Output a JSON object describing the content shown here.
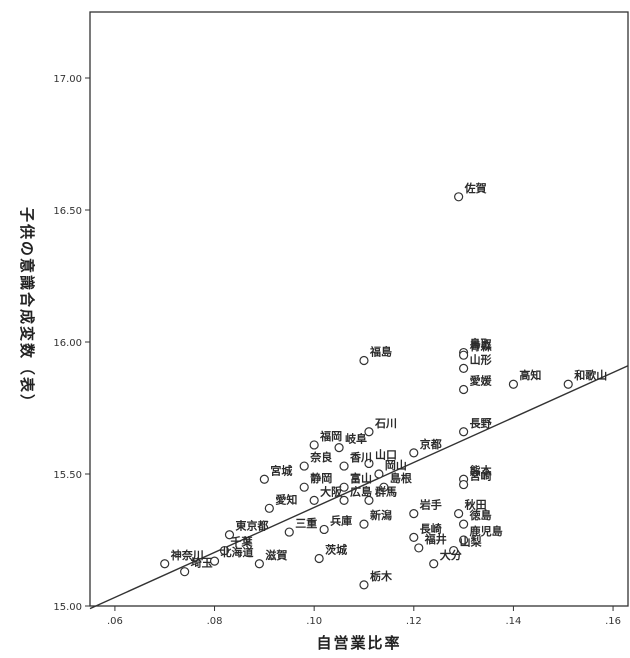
{
  "chart_data": {
    "type": "scatter",
    "title": "",
    "xlabel": "自営業比率",
    "ylabel": "子供の意識合成変数（表）",
    "xlim": [
      0.055,
      0.163
    ],
    "ylim": [
      15.0,
      17.25
    ],
    "xticks": [
      ".06",
      ".08",
      ".10",
      ".12",
      ".14",
      ".16"
    ],
    "xtick_values": [
      0.06,
      0.08,
      0.1,
      0.12,
      0.14,
      0.16
    ],
    "yticks": [
      "15.00",
      "15.50",
      "16.00",
      "16.50",
      "17.00"
    ],
    "ytick_values": [
      15.0,
      15.5,
      16.0,
      16.5,
      17.0
    ],
    "grid": false,
    "fit_line": {
      "x": [
        0.055,
        0.163
      ],
      "y": [
        14.99,
        15.91
      ]
    },
    "points": [
      {
        "name": "佐賀",
        "x": 0.129,
        "y": 16.55
      },
      {
        "name": "福島",
        "x": 0.11,
        "y": 15.93
      },
      {
        "name": "鳥取",
        "x": 0.13,
        "y": 15.96
      },
      {
        "name": "青森",
        "x": 0.13,
        "y": 15.95
      },
      {
        "name": "山形",
        "x": 0.13,
        "y": 15.9
      },
      {
        "name": "愛媛",
        "x": 0.13,
        "y": 15.82
      },
      {
        "name": "高知",
        "x": 0.14,
        "y": 15.84
      },
      {
        "name": "和歌山",
        "x": 0.151,
        "y": 15.84
      },
      {
        "name": "石川",
        "x": 0.111,
        "y": 15.66
      },
      {
        "name": "長野",
        "x": 0.13,
        "y": 15.66
      },
      {
        "name": "福岡",
        "x": 0.1,
        "y": 15.61
      },
      {
        "name": "岐阜",
        "x": 0.105,
        "y": 15.6
      },
      {
        "name": "京都",
        "x": 0.12,
        "y": 15.58
      },
      {
        "name": "奈良",
        "x": 0.098,
        "y": 15.53
      },
      {
        "name": "香川",
        "x": 0.106,
        "y": 15.53
      },
      {
        "name": "山口",
        "x": 0.111,
        "y": 15.54
      },
      {
        "name": "宮城",
        "x": 0.09,
        "y": 15.48
      },
      {
        "name": "岡山",
        "x": 0.113,
        "y": 15.5
      },
      {
        "name": "熊本",
        "x": 0.13,
        "y": 15.48
      },
      {
        "name": "宮崎",
        "x": 0.13,
        "y": 15.46
      },
      {
        "name": "静岡",
        "x": 0.098,
        "y": 15.45
      },
      {
        "name": "富山",
        "x": 0.106,
        "y": 15.45
      },
      {
        "name": "島根",
        "x": 0.114,
        "y": 15.45
      },
      {
        "name": "広島",
        "x": 0.106,
        "y": 15.4
      },
      {
        "name": "群馬",
        "x": 0.111,
        "y": 15.4
      },
      {
        "name": "愛知",
        "x": 0.091,
        "y": 15.37
      },
      {
        "name": "大阪",
        "x": 0.1,
        "y": 15.4
      },
      {
        "name": "岩手",
        "x": 0.12,
        "y": 15.35
      },
      {
        "name": "秋田",
        "x": 0.129,
        "y": 15.35
      },
      {
        "name": "新潟",
        "x": 0.11,
        "y": 15.31
      },
      {
        "name": "徳島",
        "x": 0.13,
        "y": 15.31
      },
      {
        "name": "東京都",
        "x": 0.083,
        "y": 15.27
      },
      {
        "name": "三重",
        "x": 0.095,
        "y": 15.28
      },
      {
        "name": "兵庫",
        "x": 0.102,
        "y": 15.29
      },
      {
        "name": "長崎",
        "x": 0.12,
        "y": 15.26
      },
      {
        "name": "鹿児島",
        "x": 0.13,
        "y": 15.25
      },
      {
        "name": "千葉",
        "x": 0.082,
        "y": 15.21
      },
      {
        "name": "福井",
        "x": 0.121,
        "y": 15.22
      },
      {
        "name": "山梨",
        "x": 0.128,
        "y": 15.21
      },
      {
        "name": "神奈川",
        "x": 0.07,
        "y": 15.16
      },
      {
        "name": "北海道",
        "x": 0.08,
        "y": 15.17
      },
      {
        "name": "滋賀",
        "x": 0.089,
        "y": 15.16
      },
      {
        "name": "茨城",
        "x": 0.101,
        "y": 15.18
      },
      {
        "name": "大分",
        "x": 0.124,
        "y": 15.16
      },
      {
        "name": "埼玉",
        "x": 0.074,
        "y": 15.13
      },
      {
        "name": "栃木",
        "x": 0.11,
        "y": 15.08
      }
    ]
  }
}
